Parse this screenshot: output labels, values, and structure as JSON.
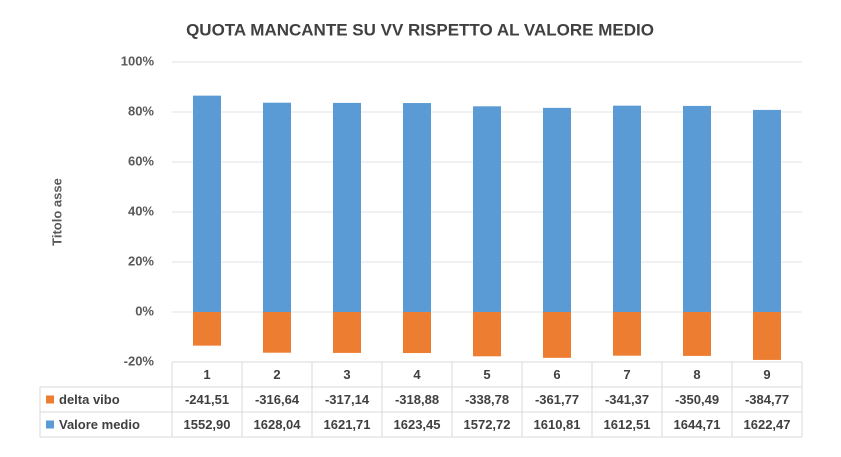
{
  "chart_data": {
    "type": "bar",
    "stacking": "percent",
    "title": "QUOTA MANCANTE SU VV RISPETTO AL VALORE MEDIO",
    "y_label": "Titolo asse",
    "categories": [
      "1",
      "2",
      "3",
      "4",
      "5",
      "6",
      "7",
      "8",
      "9"
    ],
    "series": [
      {
        "name": "delta vibo",
        "color": "#ed7d31",
        "values": [
          -241.51,
          -316.64,
          -317.14,
          -318.88,
          -338.78,
          -361.77,
          -341.37,
          -350.49,
          -384.77
        ],
        "value_labels": [
          "-241,51",
          "-316,64",
          "-317,14",
          "-318,88",
          "-338,78",
          "-361,77",
          "-341,37",
          "-350,49",
          "-384,77"
        ]
      },
      {
        "name": "Valore medio",
        "color": "#5b9bd5",
        "values": [
          1552.9,
          1628.04,
          1621.71,
          1623.45,
          1572.72,
          1610.81,
          1612.51,
          1644.71,
          1622.47
        ],
        "value_labels": [
          "1552,90",
          "1628,04",
          "1621,71",
          "1623,45",
          "1572,72",
          "1610,81",
          "1612,51",
          "1644,71",
          "1622,47"
        ]
      }
    ],
    "ylim": [
      -20,
      100
    ],
    "yticks": [
      {
        "value": -20,
        "label": "-20%"
      },
      {
        "value": 0,
        "label": "0%"
      },
      {
        "value": 20,
        "label": "20%"
      },
      {
        "value": 40,
        "label": "40%"
      },
      {
        "value": 60,
        "label": "60%"
      },
      {
        "value": 80,
        "label": "80%"
      },
      {
        "value": 100,
        "label": "100%"
      }
    ],
    "grid": true
  }
}
